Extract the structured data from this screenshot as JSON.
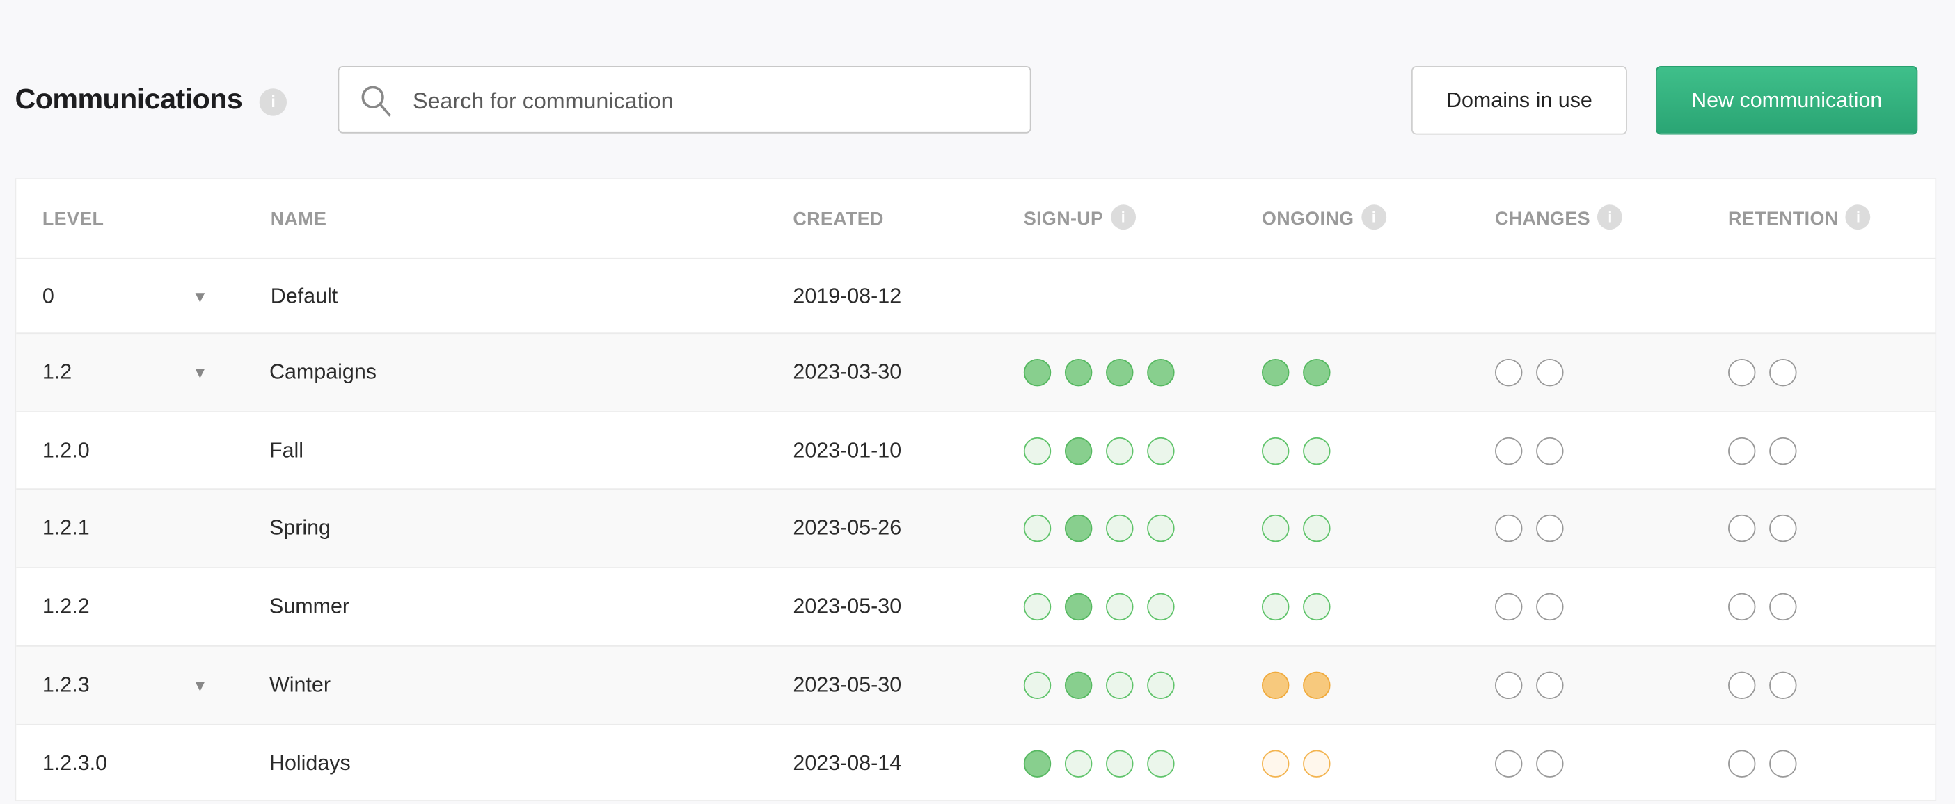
{
  "header": {
    "title": "Communications",
    "info_icon": "i"
  },
  "search": {
    "placeholder": "Search for communication",
    "value": ""
  },
  "buttons": {
    "domains": "Domains in use",
    "new": "New communication"
  },
  "colors": {
    "accent": "#2aa574",
    "dot_green": "#88cf8e",
    "dot_orange": "#f7c97d"
  },
  "table": {
    "columns": [
      "LEVEL",
      "NAME",
      "CREATED",
      "SIGN-UP",
      "ONGOING",
      "CHANGES",
      "RETENTION"
    ],
    "dot_legend": {
      "gf": "green-filled",
      "gl": "green-light",
      "of": "orange-filled",
      "ol": "orange-light",
      "e": "empty"
    },
    "rows": [
      {
        "level": "0",
        "expand": true,
        "name": "Default",
        "created": "2019-08-12",
        "signup": [],
        "ongoing": [],
        "changes": [],
        "retention": []
      },
      {
        "level": "1.2",
        "expand": true,
        "name": "Campaigns",
        "created": "2023-03-30",
        "signup": [
          "gf",
          "gf",
          "gf",
          "gf"
        ],
        "ongoing": [
          "gf",
          "gf"
        ],
        "changes": [
          "e",
          "e"
        ],
        "retention": [
          "e",
          "e"
        ]
      },
      {
        "level": "1.2.0",
        "expand": false,
        "name": "Fall",
        "created": "2023-01-10",
        "signup": [
          "gl",
          "gf",
          "gl",
          "gl"
        ],
        "ongoing": [
          "gl",
          "gl"
        ],
        "changes": [
          "e",
          "e"
        ],
        "retention": [
          "e",
          "e"
        ]
      },
      {
        "level": "1.2.1",
        "expand": false,
        "name": "Spring",
        "created": "2023-05-26",
        "signup": [
          "gl",
          "gf",
          "gl",
          "gl"
        ],
        "ongoing": [
          "gl",
          "gl"
        ],
        "changes": [
          "e",
          "e"
        ],
        "retention": [
          "e",
          "e"
        ]
      },
      {
        "level": "1.2.2",
        "expand": false,
        "name": "Summer",
        "created": "2023-05-30",
        "signup": [
          "gl",
          "gf",
          "gl",
          "gl"
        ],
        "ongoing": [
          "gl",
          "gl"
        ],
        "changes": [
          "e",
          "e"
        ],
        "retention": [
          "e",
          "e"
        ]
      },
      {
        "level": "1.2.3",
        "expand": true,
        "name": "Winter",
        "created": "2023-05-30",
        "signup": [
          "gl",
          "gf",
          "gl",
          "gl"
        ],
        "ongoing": [
          "of",
          "of"
        ],
        "changes": [
          "e",
          "e"
        ],
        "retention": [
          "e",
          "e"
        ]
      },
      {
        "level": "1.2.3.0",
        "expand": false,
        "name": "Holidays",
        "created": "2023-08-14",
        "signup": [
          "gf",
          "gl",
          "gl",
          "gl"
        ],
        "ongoing": [
          "ol",
          "ol"
        ],
        "changes": [
          "e",
          "e"
        ],
        "retention": [
          "e",
          "e"
        ]
      }
    ]
  }
}
